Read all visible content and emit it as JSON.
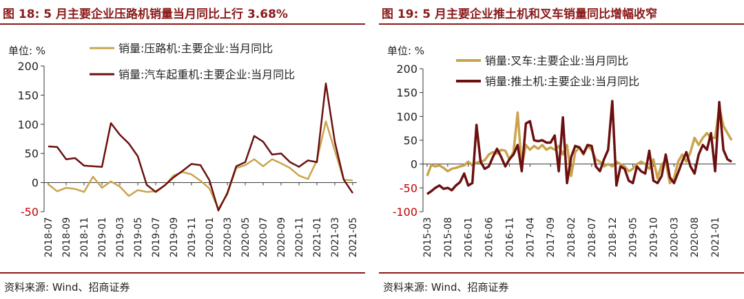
{
  "charts": [
    {
      "title": "图 18:  5 月主要企业压路机销量当月同比上行 3.68%",
      "unit": "单位:  %",
      "source": "资料来源:  Wind、招商证券",
      "chart_data": {
        "type": "line",
        "ylim": [
          -50,
          200
        ],
        "yticks": [
          -50,
          0,
          50,
          100,
          150,
          200
        ],
        "categories": [
          "2018-07",
          "2018-08",
          "2018-09",
          "2018-10",
          "2018-11",
          "2018-12",
          "2019-01",
          "2019-02",
          "2019-03",
          "2019-04",
          "2019-05",
          "2019-06",
          "2019-07",
          "2019-08",
          "2019-09",
          "2019-10",
          "2019-11",
          "2019-12",
          "2020-01",
          "2020-02",
          "2020-03",
          "2020-04",
          "2020-05",
          "2020-06",
          "2020-07",
          "2020-08",
          "2020-09",
          "2020-10",
          "2020-11",
          "2020-12",
          "2021-01",
          "2021-02",
          "2021-03",
          "2021-04",
          "2021-05"
        ],
        "tick_labels": [
          "2018-07",
          "2018-09",
          "2018-11",
          "2019-01",
          "2019-03",
          "2019-05",
          "2019-07",
          "2019-09",
          "2019-11",
          "2020-01",
          "2020-03",
          "2020-05",
          "2020-07",
          "2020-09",
          "2020-11",
          "2021-01",
          "2021-03",
          "2021-05"
        ],
        "series": [
          {
            "name": "销量:压路机:主要企业:当月同比",
            "color": "#c9a44c",
            "values": [
              -3,
              -15,
              -9,
              -11,
              -16,
              10,
              -9,
              2,
              -7,
              -23,
              -13,
              -16,
              -15,
              -5,
              12,
              18,
              14,
              3,
              -10,
              -45,
              -20,
              25,
              30,
              40,
              28,
              40,
              33,
              25,
              12,
              6,
              38,
              105,
              55,
              5,
              3.68
            ]
          },
          {
            "name": "销量:汽车起重机:主要企业:当月同比",
            "color": "#6b0f0f",
            "values": [
              62,
              61,
              40,
              42,
              29,
              28,
              27,
              102,
              82,
              67,
              45,
              -4,
              -16,
              -5,
              9,
              20,
              32,
              30,
              4,
              -48,
              -18,
              28,
              35,
              80,
              70,
              48,
              50,
              35,
              27,
              38,
              35,
              170,
              70,
              5,
              -18
            ]
          }
        ]
      }
    },
    {
      "title": "图 19:  5 月主要企业推土机和叉车销量同比增幅收窄",
      "unit": "单位:  %",
      "source": "资料来源:  Wind、招商证券",
      "chart_data": {
        "type": "line",
        "ylim": [
          -100,
          200
        ],
        "yticks": [
          -100,
          -50,
          0,
          50,
          100,
          150,
          200
        ],
        "categories": [
          "2015-03",
          "2015-04",
          "2015-05",
          "2015-06",
          "2015-07",
          "2015-08",
          "2015-09",
          "2015-10",
          "2015-11",
          "2015-12",
          "2016-01",
          "2016-02",
          "2016-03",
          "2016-04",
          "2016-05",
          "2016-06",
          "2016-07",
          "2016-08",
          "2016-09",
          "2016-10",
          "2016-11",
          "2016-12",
          "2017-01",
          "2017-02",
          "2017-03",
          "2017-04",
          "2017-05",
          "2017-06",
          "2017-07",
          "2017-08",
          "2017-09",
          "2017-10",
          "2017-11",
          "2017-12",
          "2018-01",
          "2018-02",
          "2018-03",
          "2018-04",
          "2018-05",
          "2018-06",
          "2018-07",
          "2018-08",
          "2018-09",
          "2018-10",
          "2018-11",
          "2018-12",
          "2019-01",
          "2019-02",
          "2019-03",
          "2019-04",
          "2019-05",
          "2019-06",
          "2019-07",
          "2019-08",
          "2019-09",
          "2019-10",
          "2019-11",
          "2019-12",
          "2020-01",
          "2020-02",
          "2020-03",
          "2020-04",
          "2020-05",
          "2020-06",
          "2020-07",
          "2020-08",
          "2020-09",
          "2020-10",
          "2020-11",
          "2020-12",
          "2021-01",
          "2021-02",
          "2021-03",
          "2021-04",
          "2021-05"
        ],
        "tick_labels": [
          "2015-03",
          "2015-08",
          "2016-01",
          "2016-06",
          "2016-11",
          "2017-04",
          "2017-09",
          "2018-02",
          "2018-07",
          "2018-12",
          "2019-05",
          "2019-10",
          "2020-03",
          "2020-08",
          "2021-01"
        ],
        "series": [
          {
            "name": "销量:叉车:主要企业:当月同比",
            "color": "#c9a44c",
            "values": [
              -25,
              -2,
              -5,
              -3,
              -8,
              -15,
              -10,
              -8,
              -5,
              -3,
              5,
              -3,
              3,
              5,
              8,
              20,
              25,
              22,
              30,
              28,
              10,
              25,
              108,
              -5,
              40,
              30,
              38,
              32,
              40,
              30,
              35,
              30,
              38,
              20,
              40,
              -25,
              25,
              35,
              20,
              38,
              30,
              10,
              5,
              -5,
              0,
              -5,
              5,
              0,
              -5,
              -15,
              -10,
              0,
              5,
              0,
              -10,
              10,
              -30,
              0,
              5,
              -40,
              -30,
              5,
              20,
              5,
              25,
              55,
              40,
              55,
              65,
              55,
              55,
              120,
              80,
              65,
              50
            ]
          },
          {
            "name": "销量:推土机:主要企业:当月同比",
            "color": "#6b0f0f",
            "values": [
              -63,
              -57,
              -50,
              -45,
              -52,
              -50,
              -55,
              -45,
              -38,
              -20,
              -45,
              -40,
              82,
              5,
              -10,
              -5,
              15,
              32,
              15,
              -5,
              10,
              20,
              40,
              -15,
              85,
              90,
              50,
              48,
              50,
              45,
              45,
              60,
              -15,
              98,
              -40,
              15,
              38,
              35,
              22,
              40,
              38,
              -5,
              -15,
              10,
              30,
              132,
              -45,
              -5,
              -10,
              -35,
              -40,
              -5,
              -15,
              -20,
              28,
              -35,
              -40,
              -25,
              20,
              -28,
              -40,
              -18,
              5,
              25,
              -5,
              -20,
              20,
              40,
              30,
              65,
              -15,
              130,
              30,
              10,
              5
            ]
          }
        ]
      }
    }
  ]
}
